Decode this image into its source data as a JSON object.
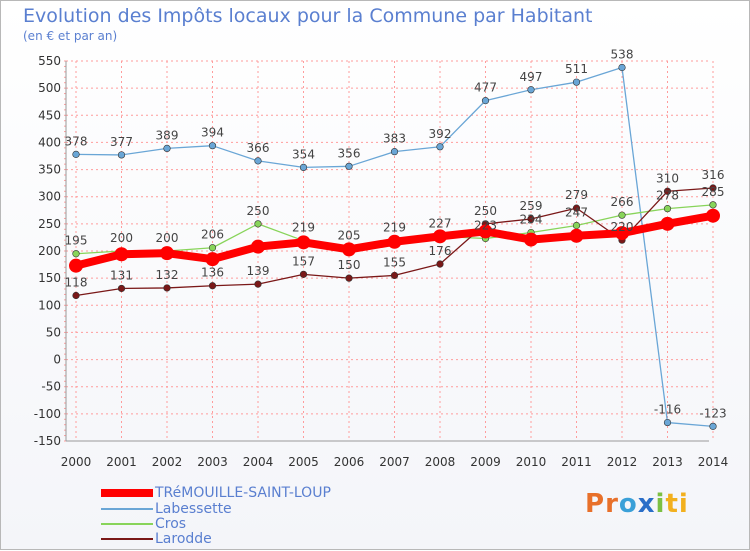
{
  "header": {
    "title": "Evolution des Impôts locaux pour la Commune par Habitant",
    "subtitle": "(en € et par an)"
  },
  "colors": {
    "title": "#5a7fd0",
    "grid": "#ff9c9c",
    "axis_text": "#333333"
  },
  "chart_data": {
    "type": "line",
    "title": "Evolution des Impôts locaux pour la Commune par Habitant",
    "subtitle": "(en € et par an)",
    "xlabel": "",
    "ylabel": "",
    "x": [
      "2000",
      "2001",
      "2002",
      "2003",
      "2004",
      "2005",
      "2006",
      "2007",
      "2008",
      "2009",
      "2010",
      "2011",
      "2012",
      "2013",
      "2014"
    ],
    "ylim": [
      -150,
      550
    ],
    "yticks": [
      -150,
      -100,
      -50,
      0,
      50,
      100,
      150,
      200,
      250,
      300,
      350,
      400,
      450,
      500,
      550
    ],
    "grid": true,
    "legend_position": "bottom-left",
    "series": [
      {
        "name": "TRéMOUILLE-SAINT-LOUP",
        "color": "#ff0000",
        "values": [
          173,
          194,
          196,
          185,
          208,
          216,
          203,
          217,
          227,
          236,
          221,
          228,
          233,
          250,
          265
        ],
        "labels": [],
        "style": "thick"
      },
      {
        "name": "Labessette",
        "color": "#6aa6d6",
        "values": [
          378,
          377,
          389,
          394,
          366,
          354,
          356,
          383,
          392,
          477,
          497,
          511,
          538,
          -116,
          -123
        ],
        "labels": [
          "378",
          "377",
          "389",
          "394",
          "366",
          "354",
          "356",
          "383",
          "392",
          "477",
          "497",
          "511",
          "538",
          "-116",
          "-123"
        ]
      },
      {
        "name": "Cros",
        "color": "#88d45a",
        "values": [
          195,
          200,
          200,
          206,
          250,
          219,
          205,
          219,
          227,
          223,
          234,
          247,
          266,
          278,
          285
        ],
        "labels": [
          "195",
          "200",
          "200",
          "206",
          "250",
          "219",
          "205",
          "219",
          "227",
          "223",
          "234",
          "247",
          "266",
          "278",
          "285"
        ]
      },
      {
        "name": "Larodde",
        "color": "#7a1818",
        "values": [
          118,
          131,
          132,
          136,
          139,
          157,
          150,
          155,
          176,
          250,
          259,
          279,
          220,
          310,
          316
        ],
        "labels": [
          "118",
          "131",
          "132",
          "136",
          "139",
          "157",
          "150",
          "155",
          "176",
          "250",
          "259",
          "279",
          "220",
          "310",
          "316"
        ]
      }
    ]
  },
  "legend": {
    "items": [
      {
        "label": "TRéMOUILLE-SAINT-LOUP"
      },
      {
        "label": "Labessette"
      },
      {
        "label": "Cros"
      },
      {
        "label": "Larodde"
      }
    ]
  },
  "logo": {
    "text": "Proxiti",
    "letters": [
      "P",
      "r",
      "o",
      "x",
      "i",
      "t",
      "i"
    ],
    "letter_colors": [
      "#e8702a",
      "#e8702a",
      "#3aa0d8",
      "#2a6ec8",
      "#7cc043",
      "#f2b01e",
      "#f2b01e"
    ]
  }
}
